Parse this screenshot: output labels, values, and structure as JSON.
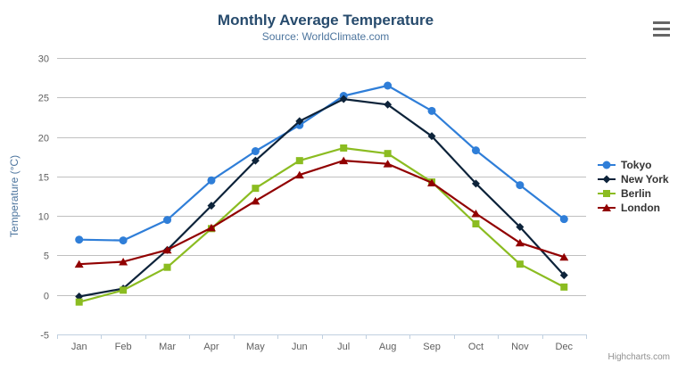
{
  "chart_data": {
    "type": "line",
    "title": "Monthly Average Temperature",
    "subtitle": "Source: WorldClimate.com",
    "xlabel": "",
    "ylabel": "Temperature (°C)",
    "categories": [
      "Jan",
      "Feb",
      "Mar",
      "Apr",
      "May",
      "Jun",
      "Jul",
      "Aug",
      "Sep",
      "Oct",
      "Nov",
      "Dec"
    ],
    "series": [
      {
        "name": "Tokyo",
        "color": "#2f7ed8",
        "marker": "circle",
        "values": [
          7.0,
          6.9,
          9.5,
          14.5,
          18.2,
          21.5,
          25.2,
          26.5,
          23.3,
          18.3,
          13.9,
          9.6
        ]
      },
      {
        "name": "New York",
        "color": "#0d233a",
        "marker": "diamond",
        "values": [
          -0.2,
          0.8,
          5.7,
          11.3,
          17.0,
          22.0,
          24.8,
          24.1,
          20.1,
          14.1,
          8.6,
          2.5
        ]
      },
      {
        "name": "Berlin",
        "color": "#8bbc21",
        "marker": "square",
        "values": [
          -0.9,
          0.6,
          3.5,
          8.4,
          13.5,
          17.0,
          18.6,
          17.9,
          14.3,
          9.0,
          3.9,
          1.0
        ]
      },
      {
        "name": "London",
        "color": "#910000",
        "marker": "triangle",
        "values": [
          3.9,
          4.2,
          5.7,
          8.5,
          11.9,
          15.2,
          17.0,
          16.6,
          14.2,
          10.3,
          6.6,
          4.8
        ]
      }
    ],
    "ylim": [
      -5,
      30
    ],
    "ytick_interval": 5,
    "grid": true,
    "legend_position": "right",
    "grid_color": "#c0c0c0",
    "axis_line_color": "#c0d0e0",
    "axis_label_color": "#606060",
    "title_color": "#274b6d",
    "subtitle_color": "#4d759e"
  },
  "credits": {
    "label": "Highcharts.com"
  },
  "export_button": {
    "icon": "hamburger-menu-icon"
  }
}
